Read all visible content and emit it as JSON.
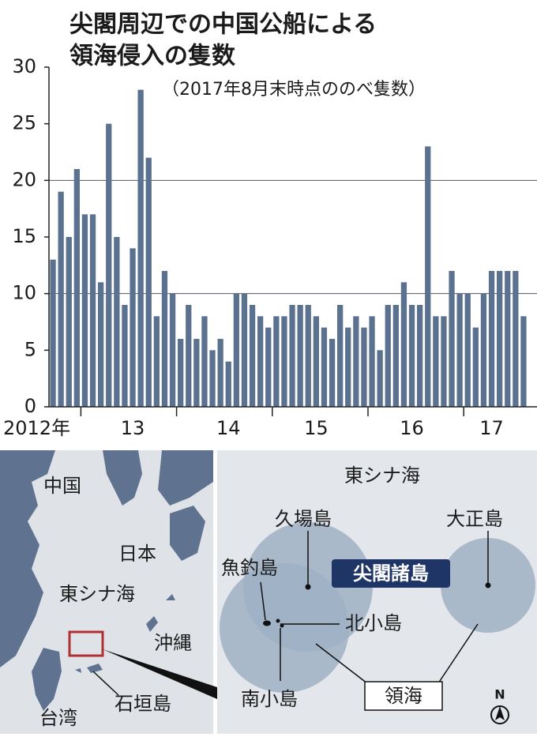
{
  "chart_data": {
    "type": "bar",
    "title": [
      "尖閣周辺での中国公船による",
      "領海侵入の隻数"
    ],
    "subtitle": "（2017年8月末時点ののべ隻数）",
    "categories": [
      "2012年",
      null,
      null,
      null,
      null,
      null,
      null,
      null,
      null,
      null,
      "13",
      null,
      null,
      null,
      null,
      null,
      null,
      null,
      null,
      null,
      null,
      null,
      "14",
      null,
      null,
      null,
      null,
      null,
      null,
      null,
      null,
      null,
      null,
      "15",
      null,
      null,
      null,
      null,
      null,
      null,
      null,
      null,
      null,
      null,
      null,
      "16",
      null,
      null,
      null,
      null,
      null,
      null,
      null,
      null,
      null,
      "17",
      null,
      null,
      null,
      null
    ],
    "values": [
      13,
      19,
      15,
      21,
      17,
      17,
      11,
      25,
      15,
      9,
      14,
      28,
      22,
      8,
      12,
      10,
      6,
      9,
      6,
      8,
      5,
      6,
      4,
      10,
      10,
      9,
      8,
      7,
      8,
      8,
      9,
      9,
      9,
      8,
      7,
      6,
      9,
      7,
      8,
      7,
      8,
      5,
      9,
      9,
      11,
      9,
      9,
      23,
      8,
      8,
      12,
      10,
      10,
      7,
      10,
      12,
      12,
      12,
      12,
      8
    ],
    "color": "#5b7190",
    "ylim": [
      0,
      30
    ],
    "yticks": [
      0,
      5,
      10,
      15,
      20,
      25,
      30
    ],
    "grid": true
  },
  "map": {
    "china": "中国",
    "japan": "日本",
    "east_china_sea": "東シナ海",
    "okinawa": "沖縄",
    "taiwan": "台湾",
    "ishigaki": "石垣島"
  },
  "inset": {
    "sea": "東シナ海",
    "kuba": "久場島",
    "taisho": "大正島",
    "uotsuri": "魚釣島",
    "senkaku": "尖閣諸島",
    "kitakojima": "北小島",
    "minamikojima": "南小島",
    "territorial_sea": "領海",
    "north": "N"
  }
}
